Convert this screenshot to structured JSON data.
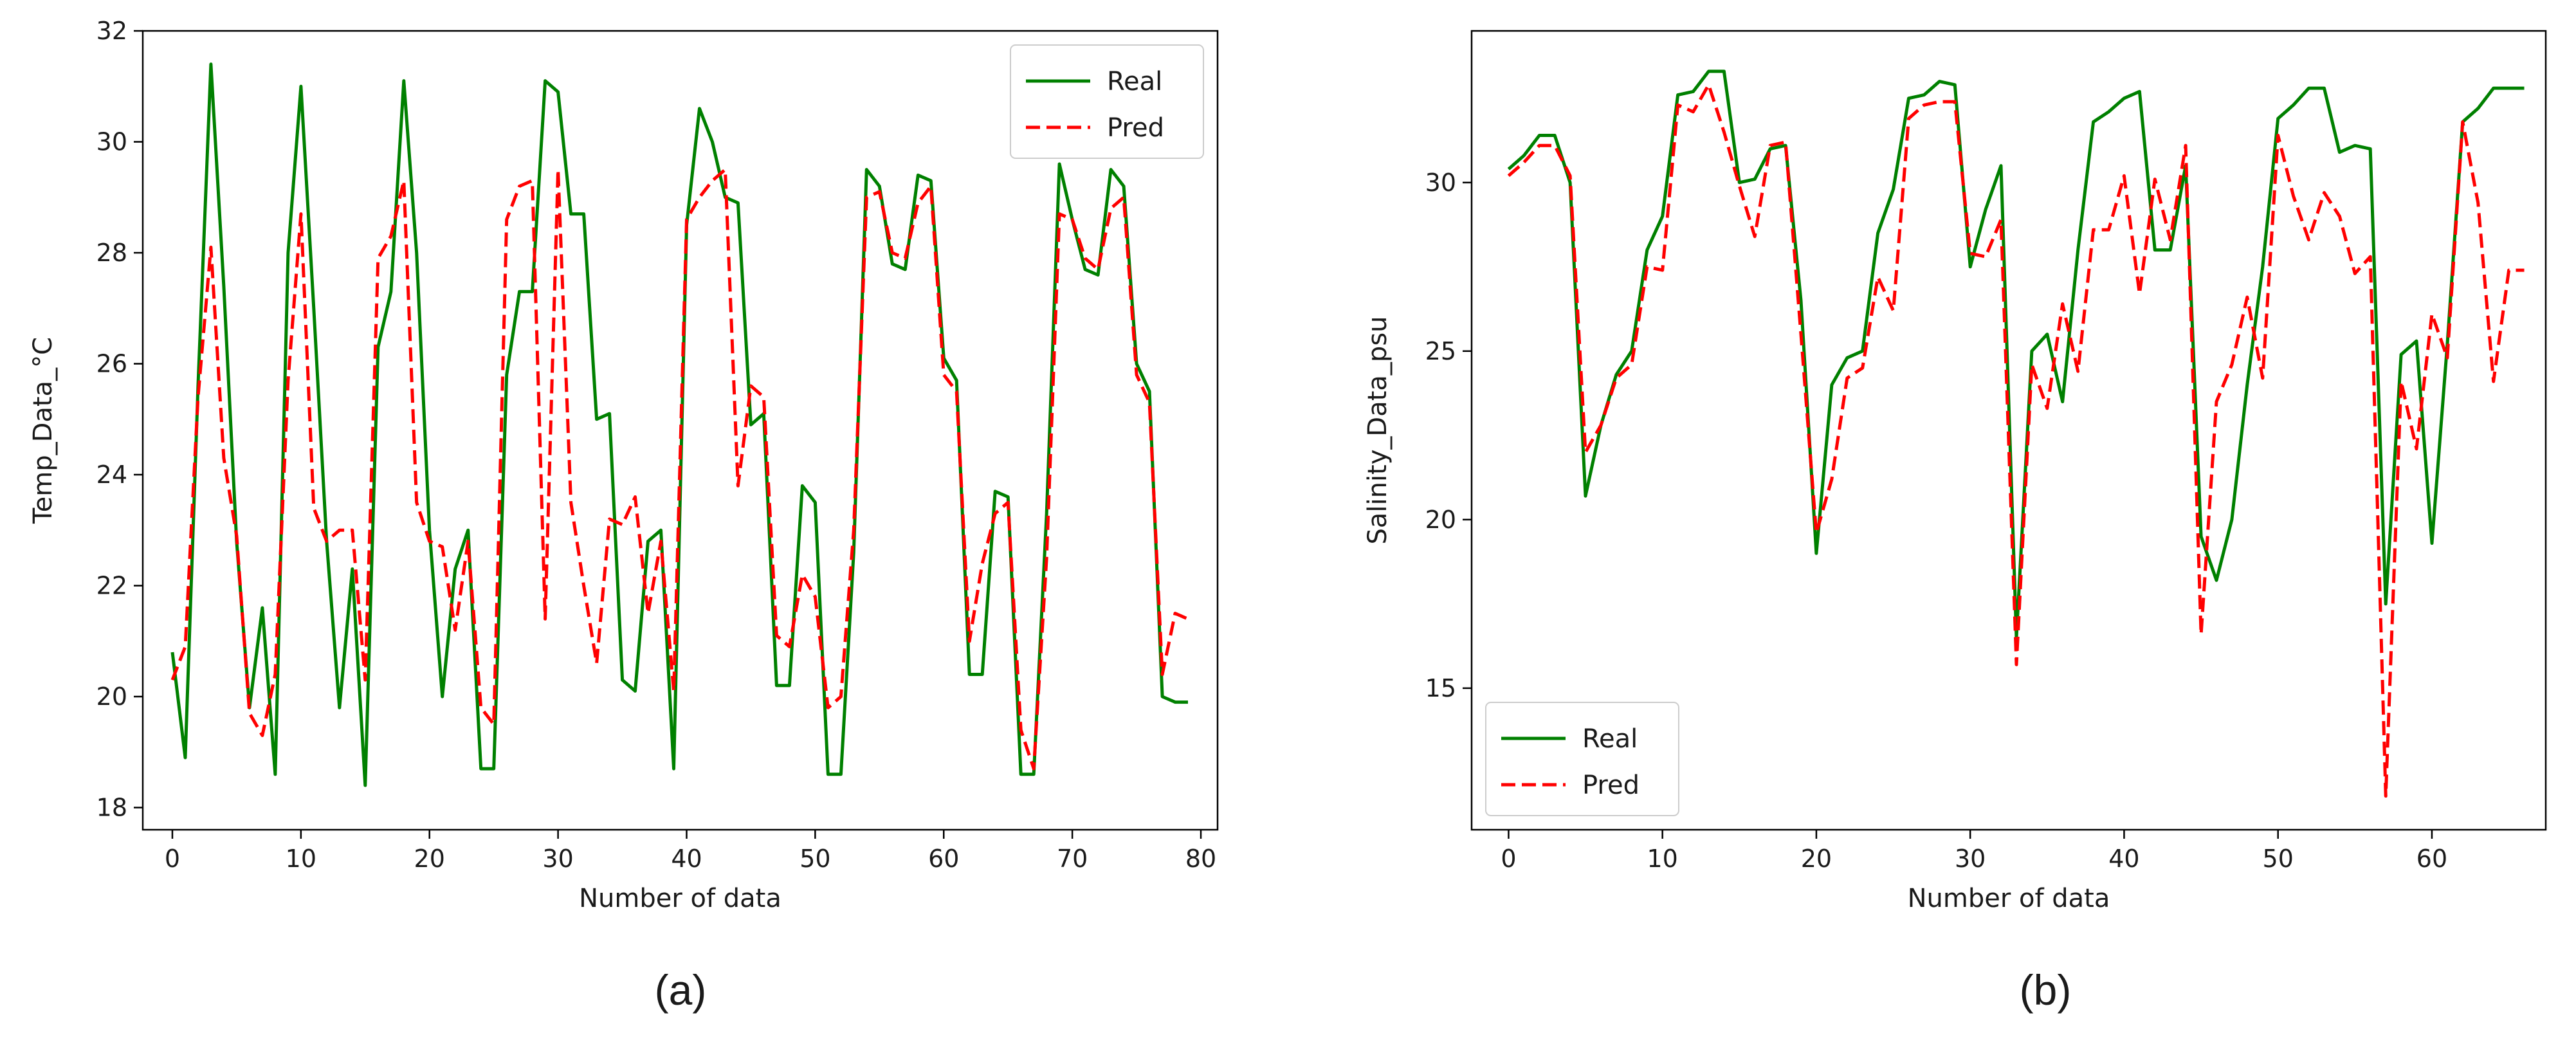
{
  "panel_captions": [
    "(a)",
    "(b)"
  ],
  "colors": {
    "real": "#008000",
    "pred": "#ff0000",
    "axis": "#000000",
    "text": "#1a1a1a"
  },
  "chart_data": [
    {
      "type": "line",
      "caption": "(a)",
      "xlabel": "Number of data",
      "ylabel": "Temp_Data_°C",
      "xlim": [
        -2.3,
        81.3
      ],
      "ylim": [
        17.6,
        32
      ],
      "xticks": [
        0,
        10,
        20,
        30,
        40,
        50,
        60,
        70,
        80
      ],
      "yticks": [
        18,
        20,
        22,
        24,
        26,
        28,
        30,
        32
      ],
      "grid": false,
      "legend_position": "top-right",
      "x": [
        0,
        1,
        2,
        3,
        4,
        5,
        6,
        7,
        8,
        9,
        10,
        11,
        12,
        13,
        14,
        15,
        16,
        17,
        18,
        19,
        20,
        21,
        22,
        23,
        24,
        25,
        26,
        27,
        28,
        29,
        30,
        31,
        32,
        33,
        34,
        35,
        36,
        37,
        38,
        39,
        40,
        41,
        42,
        43,
        44,
        45,
        46,
        47,
        48,
        49,
        50,
        51,
        52,
        53,
        54,
        55,
        56,
        57,
        58,
        59,
        60,
        61,
        62,
        63,
        64,
        65,
        66,
        67,
        68,
        69,
        70,
        71,
        72,
        73,
        74,
        75,
        76,
        77,
        78,
        79
      ],
      "series": [
        {
          "name": "Real",
          "style": "solid",
          "values": [
            20.8,
            18.9,
            25.6,
            31.4,
            27.4,
            22.8,
            19.8,
            21.6,
            18.6,
            28.0,
            31.0,
            27.0,
            22.8,
            19.8,
            22.3,
            18.4,
            26.3,
            27.3,
            31.1,
            28.0,
            23.0,
            20.0,
            22.3,
            23.0,
            18.7,
            18.7,
            25.8,
            27.3,
            27.3,
            31.1,
            30.9,
            28.7,
            28.7,
            25.0,
            25.1,
            20.3,
            20.1,
            22.8,
            23.0,
            18.7,
            28.5,
            30.6,
            30.0,
            29.0,
            28.9,
            24.9,
            25.1,
            20.2,
            20.2,
            23.8,
            23.5,
            18.6,
            18.6,
            22.6,
            29.5,
            29.2,
            27.8,
            27.7,
            29.4,
            29.3,
            26.1,
            25.7,
            20.4,
            20.4,
            23.7,
            23.6,
            18.6,
            18.6,
            23.3,
            29.6,
            28.6,
            27.7,
            27.6,
            29.5,
            29.2,
            26.0,
            25.5,
            20.0,
            19.9,
            19.9
          ]
        },
        {
          "name": "Pred",
          "style": "dashed",
          "values": [
            20.3,
            20.9,
            25.4,
            28.1,
            24.3,
            22.9,
            19.7,
            19.3,
            20.4,
            25.7,
            28.7,
            23.4,
            22.8,
            23.0,
            23.0,
            20.3,
            27.9,
            28.3,
            29.3,
            23.5,
            22.8,
            22.7,
            21.2,
            22.8,
            19.8,
            19.5,
            28.6,
            29.2,
            29.3,
            21.4,
            29.5,
            23.5,
            22.0,
            20.6,
            23.2,
            23.1,
            23.6,
            21.5,
            22.8,
            20.1,
            28.6,
            29.0,
            29.3,
            29.5,
            23.8,
            25.6,
            25.4,
            21.1,
            20.9,
            22.2,
            21.8,
            19.8,
            20.0,
            23.0,
            29.0,
            29.1,
            28.0,
            27.9,
            28.9,
            29.2,
            25.8,
            25.5,
            21.0,
            22.4,
            23.3,
            23.5,
            19.4,
            18.7,
            22.5,
            28.7,
            28.6,
            27.9,
            27.7,
            28.8,
            29.0,
            25.8,
            25.3,
            20.4,
            21.5,
            21.4
          ]
        }
      ]
    },
    {
      "type": "line",
      "caption": "(b)",
      "xlabel": "Number of data",
      "ylabel": "Salinity_Data_psu",
      "xlim": [
        -2.4,
        67.4
      ],
      "ylim": [
        10.8,
        34.5
      ],
      "xticks": [
        0,
        10,
        20,
        30,
        40,
        50,
        60
      ],
      "yticks": [
        15,
        20,
        25,
        30
      ],
      "grid": false,
      "legend_position": "bottom-left",
      "x": [
        0,
        1,
        2,
        3,
        4,
        5,
        6,
        7,
        8,
        9,
        10,
        11,
        12,
        13,
        14,
        15,
        16,
        17,
        18,
        19,
        20,
        21,
        22,
        23,
        24,
        25,
        26,
        27,
        28,
        29,
        30,
        31,
        32,
        33,
        34,
        35,
        36,
        37,
        38,
        39,
        40,
        41,
        42,
        43,
        44,
        45,
        46,
        47,
        48,
        49,
        50,
        51,
        52,
        53,
        54,
        55,
        56,
        57,
        58,
        59,
        60,
        61,
        62,
        63,
        64,
        65,
        66
      ],
      "series": [
        {
          "name": "Real",
          "style": "solid",
          "values": [
            30.4,
            30.8,
            31.4,
            31.4,
            30.0,
            20.7,
            22.8,
            24.3,
            25.0,
            28.0,
            29.0,
            32.6,
            32.7,
            33.3,
            33.3,
            30.0,
            30.1,
            31.0,
            31.1,
            26.5,
            19.0,
            24.0,
            24.8,
            25.0,
            28.5,
            29.8,
            32.5,
            32.6,
            33.0,
            32.9,
            27.5,
            29.2,
            30.5,
            16.5,
            25.0,
            25.5,
            23.5,
            28.0,
            31.8,
            32.1,
            32.5,
            32.7,
            28.0,
            28.0,
            30.5,
            19.5,
            18.2,
            20.0,
            24.0,
            27.5,
            31.9,
            32.3,
            32.8,
            32.8,
            30.9,
            31.1,
            31.0,
            17.5,
            24.9,
            25.3,
            19.3,
            25.2,
            31.8,
            32.2,
            32.8,
            32.8,
            32.8
          ]
        },
        {
          "name": "Pred",
          "style": "dashed",
          "values": [
            30.2,
            30.6,
            31.1,
            31.1,
            30.2,
            22.0,
            22.8,
            24.2,
            24.6,
            27.5,
            27.4,
            32.3,
            32.1,
            32.9,
            31.5,
            29.9,
            28.4,
            31.1,
            31.2,
            25.5,
            19.6,
            21.2,
            24.2,
            24.5,
            27.2,
            26.2,
            31.9,
            32.3,
            32.4,
            32.4,
            27.9,
            27.8,
            28.9,
            15.7,
            24.6,
            23.3,
            26.4,
            24.4,
            28.6,
            28.6,
            30.2,
            26.7,
            30.1,
            28.3,
            31.1,
            16.6,
            23.5,
            24.6,
            26.6,
            24.2,
            31.4,
            29.6,
            28.3,
            29.7,
            29.0,
            27.3,
            27.8,
            11.8,
            24.1,
            22.1,
            26.1,
            24.8,
            31.8,
            29.4,
            24.1,
            27.4,
            27.4
          ]
        }
      ]
    }
  ]
}
